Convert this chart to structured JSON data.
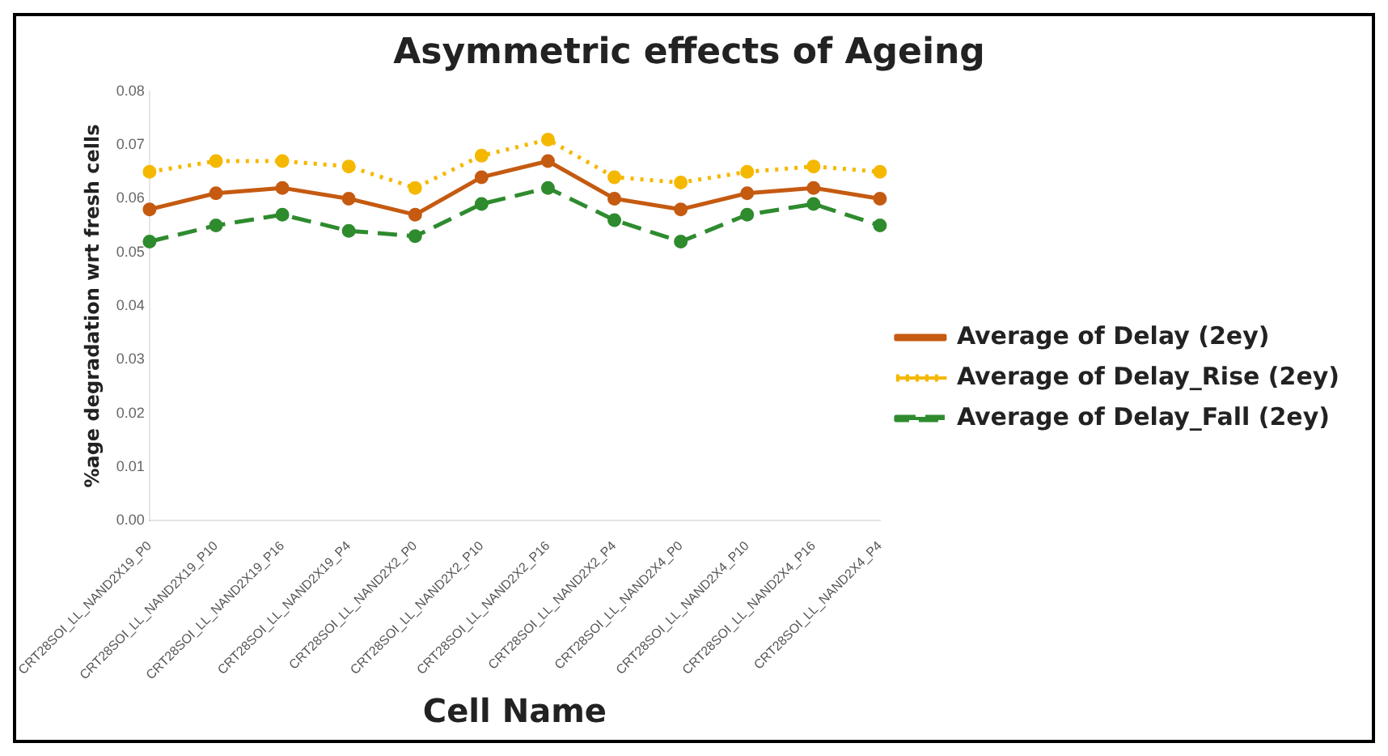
{
  "chart_data": {
    "type": "line",
    "title": "Asymmetric effects of Ageing",
    "xlabel": "Cell Name",
    "ylabel": "%age degradation wrt fresh cells",
    "categories": [
      "CRT28SOI_LL_NAND2X19_P0",
      "CRT28SOI_LL_NAND2X19_P10",
      "CRT28SOI_LL_NAND2X19_P16",
      "CRT28SOI_LL_NAND2X19_P4",
      "CRT28SOI_LL_NAND2X2_P0",
      "CRT28SOI_LL_NAND2X2_P10",
      "CRT28SOI_LL_NAND2X2_P16",
      "CRT28SOI_LL_NAND2X2_P4",
      "CRT28SOI_LL_NAND2X4_P0",
      "CRT28SOI_LL_NAND2X4_P10",
      "CRT28SOI_LL_NAND2X4_P16",
      "CRT28SOI_LL_NAND2X4_P4"
    ],
    "series": [
      {
        "name": "Average of Delay (2ey)",
        "color": "#c55a11",
        "line_style": "solid",
        "values": [
          0.058,
          0.061,
          0.062,
          0.06,
          0.057,
          0.064,
          0.067,
          0.06,
          0.058,
          0.061,
          0.062,
          0.06
        ]
      },
      {
        "name": "Average of Delay_Rise (2ey)",
        "color": "#f5b800",
        "line_style": "dotted",
        "values": [
          0.065,
          0.067,
          0.067,
          0.066,
          0.062,
          0.068,
          0.071,
          0.064,
          0.063,
          0.065,
          0.066,
          0.065
        ]
      },
      {
        "name": "Average of Delay_Fall (2ey)",
        "color": "#2e8b2e",
        "line_style": "dashed",
        "values": [
          0.052,
          0.055,
          0.057,
          0.054,
          0.053,
          0.059,
          0.062,
          0.056,
          0.052,
          0.057,
          0.059,
          0.055
        ]
      }
    ],
    "ylim": [
      0,
      0.08
    ],
    "yticks": [
      {
        "value": 0,
        "label": "0.00"
      },
      {
        "value": 0.01,
        "label": "0.01"
      },
      {
        "value": 0.02,
        "label": "0.02"
      },
      {
        "value": 0.03,
        "label": "0.03"
      },
      {
        "value": 0.04,
        "label": "0.04"
      },
      {
        "value": 0.05,
        "label": "0.05"
      },
      {
        "value": 0.06,
        "label": "0.06"
      },
      {
        "value": 0.07,
        "label": "0.07"
      },
      {
        "value": 0.08,
        "label": "0.08"
      }
    ],
    "grid": false,
    "legend": "right",
    "marker": "circle"
  }
}
